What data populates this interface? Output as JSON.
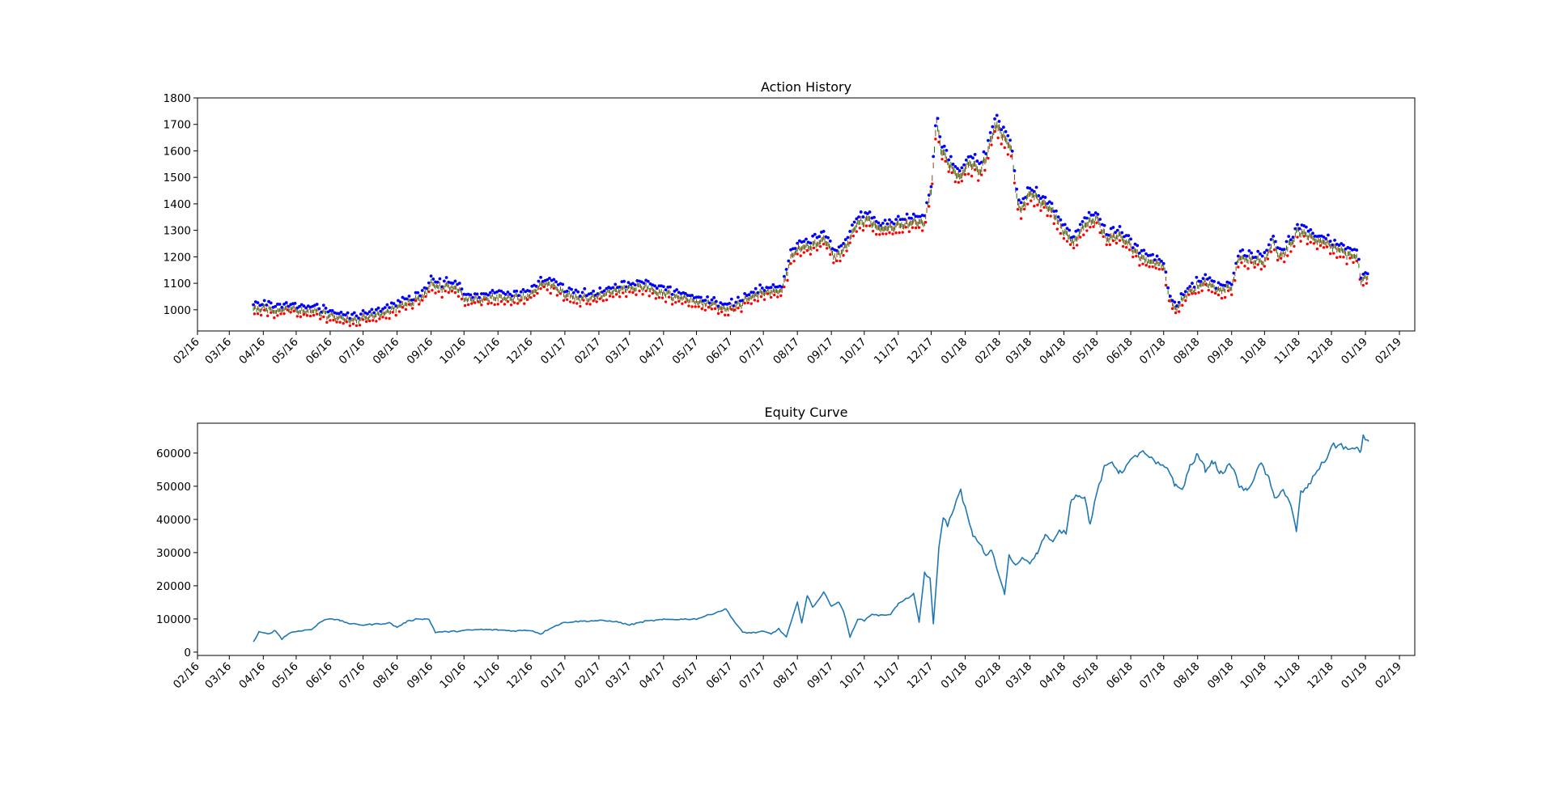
{
  "figure": {
    "background": "#ffffff"
  },
  "charts": [
    {
      "type": "scatter",
      "title": "Action History",
      "xlabel": "",
      "ylabel": "",
      "ylim": [
        920,
        1800
      ],
      "yticks": [
        1000,
        1100,
        1200,
        1300,
        1400,
        1500,
        1600,
        1700,
        1800
      ],
      "xlim": [
        "2016-02-01",
        "2019-02-15"
      ],
      "xticks": [
        "02/16",
        "03/16",
        "04/16",
        "05/16",
        "06/16",
        "07/16",
        "08/16",
        "09/16",
        "10/16",
        "11/16",
        "12/16",
        "01/17",
        "02/17",
        "03/17",
        "04/17",
        "05/17",
        "06/17",
        "07/17",
        "08/17",
        "09/17",
        "10/17",
        "11/17",
        "12/17",
        "01/18",
        "02/18",
        "03/18",
        "04/18",
        "05/18",
        "06/18",
        "07/18",
        "08/18",
        "09/18",
        "10/18",
        "11/18",
        "12/18",
        "01/19",
        "02/19"
      ],
      "grid": false,
      "legend": "none",
      "series_colors": {
        "sell_markers": "#0000ff",
        "buy_markers": "#ff0000",
        "price_line": "#8b4513",
        "hold_marks": "#008000"
      },
      "price_path": [
        [
          "2016-03-23",
          1000
        ],
        [
          "2016-04-01",
          1005
        ],
        [
          "2016-04-15",
          995
        ],
        [
          "2016-04-25",
          1010
        ],
        [
          "2016-05-05",
          990
        ],
        [
          "2016-05-20",
          995
        ],
        [
          "2016-06-01",
          975
        ],
        [
          "2016-06-15",
          965
        ],
        [
          "2016-06-25",
          962
        ],
        [
          "2016-07-05",
          975
        ],
        [
          "2016-07-20",
          985
        ],
        [
          "2016-08-01",
          1010
        ],
        [
          "2016-08-15",
          1030
        ],
        [
          "2016-08-25",
          1050
        ],
        [
          "2016-09-01",
          1095
        ],
        [
          "2016-09-10",
          1085
        ],
        [
          "2016-09-25",
          1085
        ],
        [
          "2016-10-01",
          1045
        ],
        [
          "2016-10-15",
          1040
        ],
        [
          "2016-11-01",
          1048
        ],
        [
          "2016-11-15",
          1040
        ],
        [
          "2016-12-01",
          1055
        ],
        [
          "2016-12-10",
          1095
        ],
        [
          "2016-12-20",
          1100
        ],
        [
          "2016-12-31",
          1060
        ],
        [
          "2017-01-15",
          1040
        ],
        [
          "2017-02-01",
          1050
        ],
        [
          "2017-02-15",
          1065
        ],
        [
          "2017-03-01",
          1080
        ],
        [
          "2017-03-15",
          1085
        ],
        [
          "2017-04-01",
          1060
        ],
        [
          "2017-04-15",
          1050
        ],
        [
          "2017-05-01",
          1030
        ],
        [
          "2017-05-15",
          1020
        ],
        [
          "2017-05-28",
          1005
        ],
        [
          "2017-06-10",
          1020
        ],
        [
          "2017-06-20",
          1050
        ],
        [
          "2017-07-01",
          1060
        ],
        [
          "2017-07-10",
          1070
        ],
        [
          "2017-07-18",
          1075
        ],
        [
          "2017-07-25",
          1180
        ],
        [
          "2017-08-01",
          1230
        ],
        [
          "2017-08-15",
          1240
        ],
        [
          "2017-08-25",
          1270
        ],
        [
          "2017-09-05",
          1195
        ],
        [
          "2017-09-15",
          1240
        ],
        [
          "2017-09-25",
          1330
        ],
        [
          "2017-10-05",
          1340
        ],
        [
          "2017-10-15",
          1305
        ],
        [
          "2017-10-25",
          1310
        ],
        [
          "2017-11-05",
          1320
        ],
        [
          "2017-11-15",
          1330
        ],
        [
          "2017-11-25",
          1330
        ],
        [
          "2017-12-01",
          1450
        ],
        [
          "2017-12-06",
          1710
        ],
        [
          "2017-12-10",
          1610
        ],
        [
          "2017-12-18",
          1540
        ],
        [
          "2017-12-28",
          1500
        ],
        [
          "2018-01-05",
          1560
        ],
        [
          "2018-01-15",
          1520
        ],
        [
          "2018-01-22",
          1600
        ],
        [
          "2018-01-28",
          1700
        ],
        [
          "2018-02-05",
          1660
        ],
        [
          "2018-02-12",
          1610
        ],
        [
          "2018-02-16",
          1460
        ],
        [
          "2018-02-20",
          1370
        ],
        [
          "2018-03-01",
          1440
        ],
        [
          "2018-03-10",
          1410
        ],
        [
          "2018-03-20",
          1380
        ],
        [
          "2018-04-01",
          1300
        ],
        [
          "2018-04-10",
          1250
        ],
        [
          "2018-04-20",
          1320
        ],
        [
          "2018-05-01",
          1340
        ],
        [
          "2018-05-10",
          1270
        ],
        [
          "2018-05-20",
          1280
        ],
        [
          "2018-06-01",
          1240
        ],
        [
          "2018-06-10",
          1200
        ],
        [
          "2018-06-20",
          1180
        ],
        [
          "2018-07-01",
          1170
        ],
        [
          "2018-07-05",
          1060
        ],
        [
          "2018-07-12",
          1000
        ],
        [
          "2018-07-20",
          1050
        ],
        [
          "2018-08-01",
          1090
        ],
        [
          "2018-08-10",
          1100
        ],
        [
          "2018-08-20",
          1070
        ],
        [
          "2018-09-01",
          1090
        ],
        [
          "2018-09-08",
          1200
        ],
        [
          "2018-09-20",
          1190
        ],
        [
          "2018-10-01",
          1180
        ],
        [
          "2018-10-08",
          1260
        ],
        [
          "2018-10-15",
          1200
        ],
        [
          "2018-10-25",
          1250
        ],
        [
          "2018-11-01",
          1300
        ],
        [
          "2018-11-15",
          1270
        ],
        [
          "2018-12-01",
          1240
        ],
        [
          "2018-12-15",
          1210
        ],
        [
          "2018-12-24",
          1200
        ],
        [
          "2018-12-28",
          1110
        ],
        [
          "2019-01-03",
          1115
        ]
      ]
    },
    {
      "type": "line",
      "title": "Equity Curve",
      "xlabel": "",
      "ylabel": "",
      "ylim": [
        -1000,
        69000
      ],
      "yticks": [
        0,
        10000,
        20000,
        30000,
        40000,
        50000,
        60000
      ],
      "xlim": [
        "2016-02-01",
        "2019-02-15"
      ],
      "xticks": [
        "02/16",
        "03/16",
        "04/16",
        "05/16",
        "06/16",
        "07/16",
        "08/16",
        "09/16",
        "10/16",
        "11/16",
        "12/16",
        "01/17",
        "02/17",
        "03/17",
        "04/17",
        "05/17",
        "06/17",
        "07/17",
        "08/17",
        "09/17",
        "10/17",
        "11/17",
        "12/17",
        "01/18",
        "02/18",
        "03/18",
        "04/18",
        "05/18",
        "06/18",
        "07/18",
        "08/18",
        "09/18",
        "10/18",
        "11/18",
        "12/18",
        "01/19",
        "02/19"
      ],
      "grid": false,
      "legend": "none",
      "line_color": "#1f77b4",
      "series": [
        {
          "points": [
            [
              "2016-03-23",
              3000
            ],
            [
              "2016-03-28",
              6000
            ],
            [
              "2016-04-05",
              5500
            ],
            [
              "2016-04-12",
              6500
            ],
            [
              "2016-04-18",
              4000
            ],
            [
              "2016-04-25",
              5800
            ],
            [
              "2016-05-05",
              6500
            ],
            [
              "2016-05-15",
              6800
            ],
            [
              "2016-05-25",
              9500
            ],
            [
              "2016-06-01",
              10200
            ],
            [
              "2016-06-10",
              9500
            ],
            [
              "2016-06-20",
              8500
            ],
            [
              "2016-07-01",
              8200
            ],
            [
              "2016-07-15",
              8500
            ],
            [
              "2016-07-25",
              8800
            ],
            [
              "2016-08-01",
              7500
            ],
            [
              "2016-08-10",
              9200
            ],
            [
              "2016-08-20",
              10100
            ],
            [
              "2016-08-30",
              9900
            ],
            [
              "2016-09-05",
              6000
            ],
            [
              "2016-09-20",
              6200
            ],
            [
              "2016-10-01",
              6500
            ],
            [
              "2016-10-15",
              6800
            ],
            [
              "2016-11-01",
              6700
            ],
            [
              "2016-11-15",
              6400
            ],
            [
              "2016-12-01",
              6600
            ],
            [
              "2016-12-10",
              5500
            ],
            [
              "2016-12-20",
              7500
            ],
            [
              "2017-01-01",
              9000
            ],
            [
              "2017-01-15",
              9300
            ],
            [
              "2017-02-01",
              9500
            ],
            [
              "2017-02-15",
              9300
            ],
            [
              "2017-03-01",
              8200
            ],
            [
              "2017-03-15",
              9300
            ],
            [
              "2017-04-01",
              9800
            ],
            [
              "2017-04-15",
              9900
            ],
            [
              "2017-05-01",
              10000
            ],
            [
              "2017-05-15",
              11500
            ],
            [
              "2017-05-28",
              13000
            ],
            [
              "2017-06-05",
              9000
            ],
            [
              "2017-06-12",
              6000
            ],
            [
              "2017-06-20",
              5800
            ],
            [
              "2017-07-01",
              6200
            ],
            [
              "2017-07-08",
              5500
            ],
            [
              "2017-07-15",
              7000
            ],
            [
              "2017-07-22",
              4500
            ],
            [
              "2017-08-01",
              15000
            ],
            [
              "2017-08-05",
              9000
            ],
            [
              "2017-08-10",
              17000
            ],
            [
              "2017-08-15",
              13500
            ],
            [
              "2017-08-25",
              18000
            ],
            [
              "2017-09-01",
              14000
            ],
            [
              "2017-09-08",
              15000
            ],
            [
              "2017-09-12",
              12500
            ],
            [
              "2017-09-18",
              4500
            ],
            [
              "2017-09-25",
              10000
            ],
            [
              "2017-10-01",
              9500
            ],
            [
              "2017-10-08",
              11500
            ],
            [
              "2017-10-15",
              11000
            ],
            [
              "2017-10-25",
              11500
            ],
            [
              "2017-11-01",
              14500
            ],
            [
              "2017-11-08",
              16000
            ],
            [
              "2017-11-15",
              17500
            ],
            [
              "2017-11-20",
              9000
            ],
            [
              "2017-11-25",
              24000
            ],
            [
              "2017-11-30",
              22000
            ],
            [
              "2017-12-03",
              8500
            ],
            [
              "2017-12-08",
              31000
            ],
            [
              "2017-12-12",
              41000
            ],
            [
              "2017-12-16",
              38000
            ],
            [
              "2017-12-22",
              44000
            ],
            [
              "2017-12-28",
              48500
            ],
            [
              "2018-01-03",
              41000
            ],
            [
              "2018-01-08",
              35000
            ],
            [
              "2018-01-14",
              33000
            ],
            [
              "2018-01-20",
              29000
            ],
            [
              "2018-01-25",
              31000
            ],
            [
              "2018-01-30",
              25000
            ],
            [
              "2018-02-06",
              17500
            ],
            [
              "2018-02-10",
              29000
            ],
            [
              "2018-02-16",
              26000
            ],
            [
              "2018-02-22",
              28500
            ],
            [
              "2018-03-01",
              27000
            ],
            [
              "2018-03-08",
              30000
            ],
            [
              "2018-03-15",
              35500
            ],
            [
              "2018-03-22",
              33000
            ],
            [
              "2018-03-28",
              36500
            ],
            [
              "2018-04-03",
              36000
            ],
            [
              "2018-04-08",
              46500
            ],
            [
              "2018-04-15",
              47500
            ],
            [
              "2018-04-20",
              46500
            ],
            [
              "2018-04-25",
              38500
            ],
            [
              "2018-05-01",
              48000
            ],
            [
              "2018-05-08",
              55500
            ],
            [
              "2018-05-15",
              57500
            ],
            [
              "2018-05-22",
              54000
            ],
            [
              "2018-06-01",
              57500
            ],
            [
              "2018-06-10",
              60500
            ],
            [
              "2018-06-20",
              58000
            ],
            [
              "2018-06-28",
              56000
            ],
            [
              "2018-07-05",
              55500
            ],
            [
              "2018-07-12",
              50000
            ],
            [
              "2018-07-18",
              49000
            ],
            [
              "2018-07-25",
              56000
            ],
            [
              "2018-08-01",
              59500
            ],
            [
              "2018-08-08",
              55000
            ],
            [
              "2018-08-15",
              57500
            ],
            [
              "2018-08-22",
              54000
            ],
            [
              "2018-09-01",
              56500
            ],
            [
              "2018-09-08",
              50000
            ],
            [
              "2018-09-15",
              48500
            ],
            [
              "2018-09-22",
              53000
            ],
            [
              "2018-09-28",
              57000
            ],
            [
              "2018-10-05",
              52000
            ],
            [
              "2018-10-10",
              46500
            ],
            [
              "2018-10-18",
              49000
            ],
            [
              "2018-10-25",
              44000
            ],
            [
              "2018-10-30",
              36500
            ],
            [
              "2018-11-03",
              48000
            ],
            [
              "2018-11-10",
              50000
            ],
            [
              "2018-11-18",
              55000
            ],
            [
              "2018-11-25",
              57500
            ],
            [
              "2018-12-01",
              62000
            ],
            [
              "2018-12-10",
              62500
            ],
            [
              "2018-12-18",
              60500
            ],
            [
              "2018-12-25",
              62000
            ],
            [
              "2018-12-28",
              60000
            ],
            [
              "2018-12-30",
              65500
            ],
            [
              "2019-01-04",
              63500
            ]
          ]
        }
      ]
    }
  ]
}
